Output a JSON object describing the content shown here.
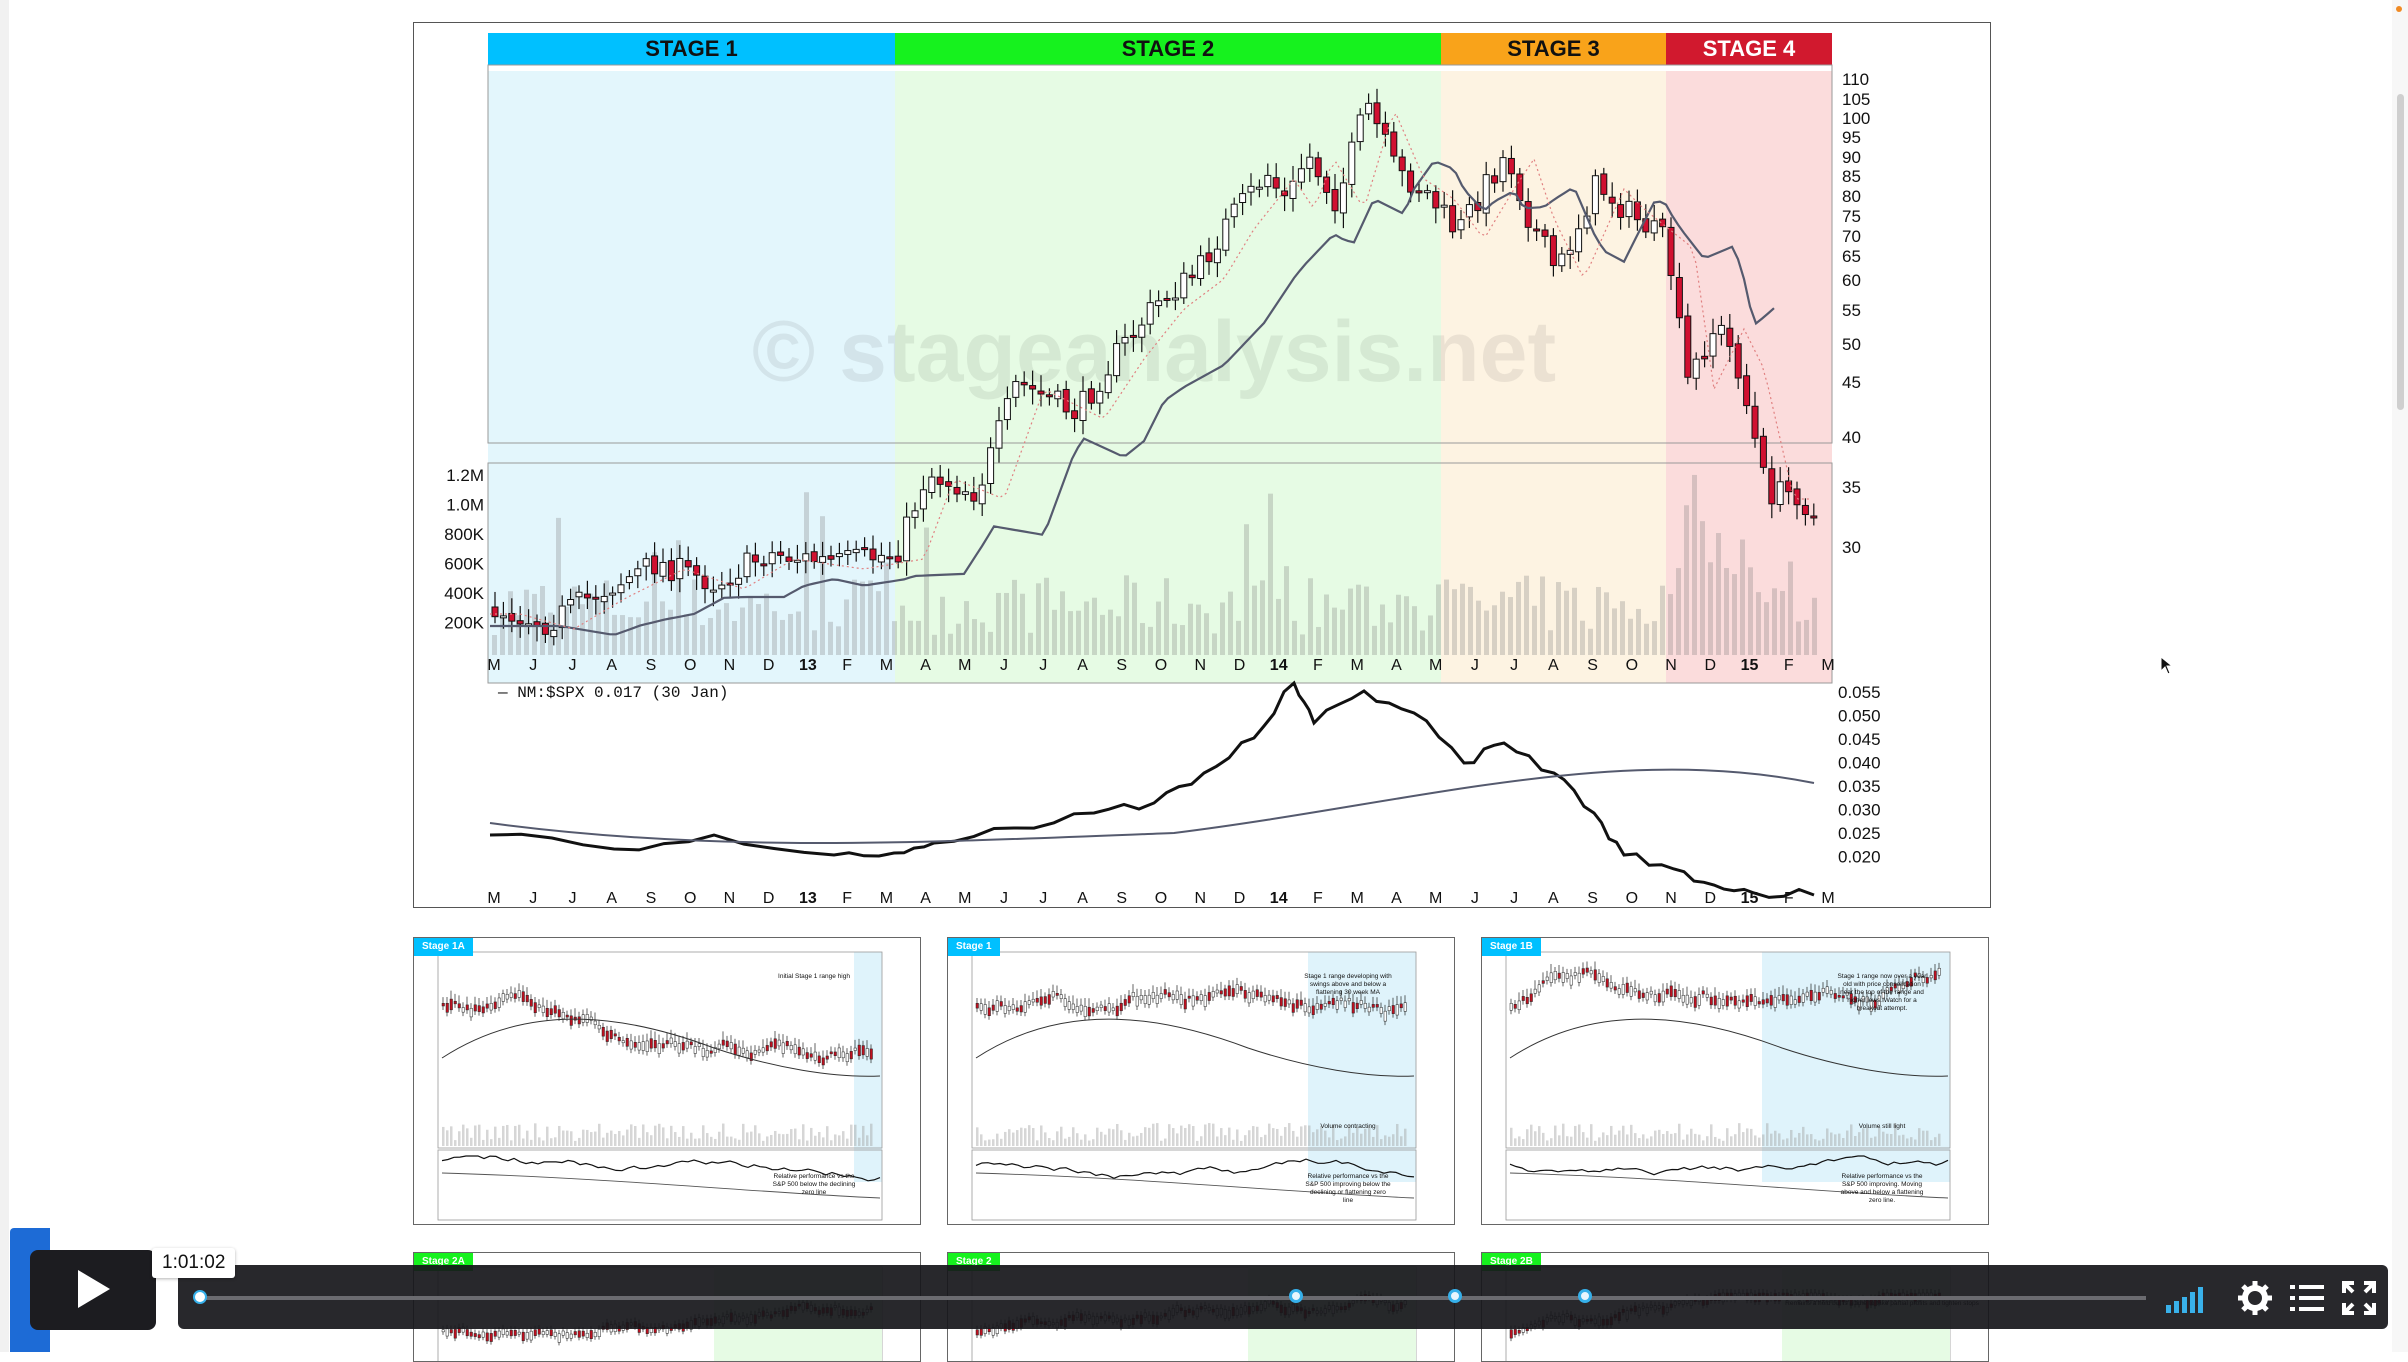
{
  "main_chart": {
    "stages": [
      {
        "label": "STAGE 1",
        "color": "#00c0ff",
        "bg": "#e3f6fc"
      },
      {
        "label": "STAGE 2",
        "color": "#16f21e",
        "bg": "#e6fbe4"
      },
      {
        "label": "STAGE 3",
        "color": "#f9a31a",
        "bg": "#fdf3e2"
      },
      {
        "label": "STAGE 4",
        "color": "#d1192e",
        "bg": "#fbdcdc"
      }
    ],
    "watermark": "© stageanalysis.net",
    "price_axis": [
      "110",
      "105",
      "100",
      "95",
      "90",
      "85",
      "80",
      "75",
      "70",
      "65",
      "60",
      "55",
      "50",
      "45",
      "40",
      "35",
      "30"
    ],
    "volume_axis": [
      "1.2M",
      "1.0M",
      "800K",
      "600K",
      "400K",
      "200K"
    ],
    "month_labels": [
      "M",
      "J",
      "J",
      "A",
      "S",
      "O",
      "N",
      "D",
      "13",
      "F",
      "M",
      "A",
      "M",
      "J",
      "J",
      "A",
      "S",
      "O",
      "N",
      "D",
      "14",
      "F",
      "M",
      "A",
      "M",
      "J",
      "J",
      "A",
      "S",
      "O",
      "N",
      "D",
      "15",
      "F",
      "M"
    ],
    "rs_label": "— NM:$SPX 0.017 (30 Jan)",
    "rs_axis": [
      "0.055",
      "0.050",
      "0.045",
      "0.040",
      "0.035",
      "0.030",
      "0.025",
      "0.020"
    ]
  },
  "thumbnails": [
    {
      "tag": "Stage 1A",
      "color": "#00c0ff",
      "note": "Initial Stage 1 range high",
      "rs_note": "Relative performance vs the S&P 500 below the declining zero line"
    },
    {
      "tag": "Stage 1",
      "color": "#00c0ff",
      "note": "Stage 1 range developing with swings above and below a flattening 30 week MA",
      "vol_note": "Volume contracting",
      "rs_note": "Relative performance vs the S&P 500 improving below the declining or flattening zero line"
    },
    {
      "tag": "Stage 1B",
      "color": "#00c0ff",
      "note": "Stage 1 range now over a year old with price consolidation near the top of the range and higher lows. Watch for a breakout attempt.",
      "vol_note": "Volume still light",
      "rs_note": "Relative performance vs the S&P 500 improving. Moving above and below a flattening zero line."
    },
    {
      "tag": "Stage 2A",
      "color": "#16f21e"
    },
    {
      "tag": "Stage 2",
      "color": "#16f21e"
    },
    {
      "tag": "Stage 2B",
      "color": "#16f21e",
      "note": "Remains a hold but is a time to take partial profits and tighten stops"
    }
  ],
  "player": {
    "time_tooltip": "1:01:02",
    "play_label": "Play",
    "chapters": [
      1296,
      1455,
      1585
    ]
  }
}
